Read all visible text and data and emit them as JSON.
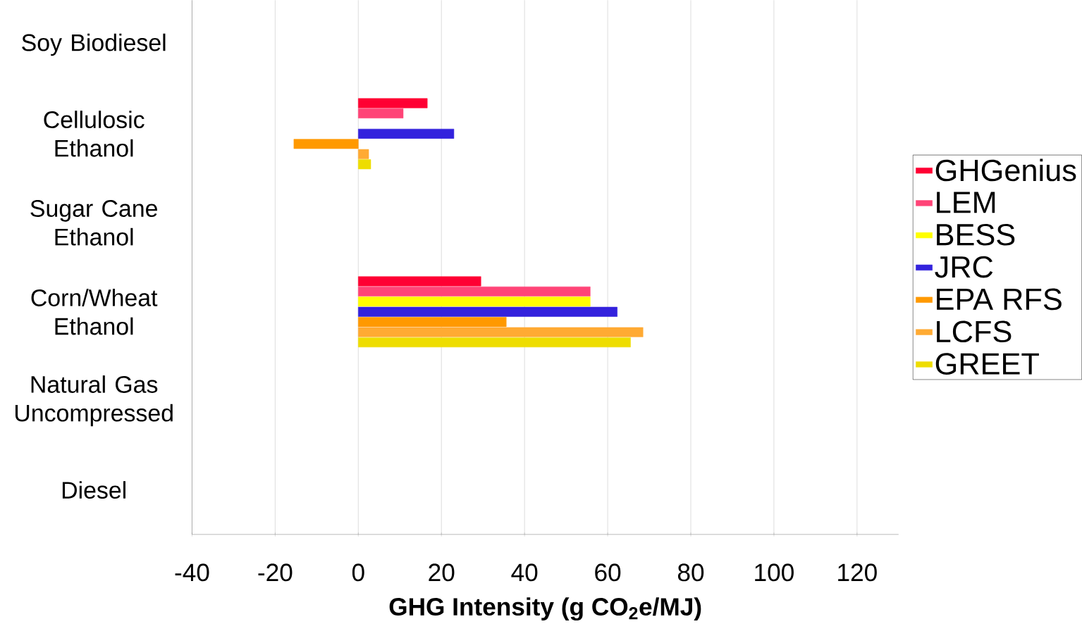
{
  "chart_data": {
    "type": "bar",
    "orientation": "horizontal",
    "xlabel": "**GHG Intensity (g CO$_{2}$e/MJ)**",
    "categories": [
      "Soy Biodiesel",
      "Cellulosic Ethanol",
      "Sugar Cane Ethanol",
      "Corn/Wheat Ethanol",
      "Natural Gas Uncompressed",
      "Diesel"
    ],
    "series": [
      {
        "name": "GHGenius",
        "color": "#ff0033",
        "values": [
          null,
          16.6,
          null,
          29.5,
          null,
          null
        ]
      },
      {
        "name": "LEM",
        "color": "#ff4477",
        "values": [
          null,
          10.8,
          null,
          55.8,
          null,
          null
        ]
      },
      {
        "name": "BESS",
        "color": "#ffff00",
        "values": [
          null,
          null,
          null,
          55.8,
          null,
          null
        ]
      },
      {
        "name": "JRC",
        "color": "#3322dd",
        "values": [
          null,
          23,
          null,
          62.3,
          null,
          null
        ]
      },
      {
        "name": "EPA RFS",
        "color": "#ff9900",
        "values": [
          null,
          -15.5,
          null,
          35.6,
          null,
          null
        ]
      },
      {
        "name": "LCFS",
        "color": "#ffaa33",
        "values": [
          null,
          2.5,
          null,
          68.5,
          null,
          null
        ]
      },
      {
        "name": "GREET",
        "color": "#eedd00",
        "values": [
          null,
          3,
          null,
          65.5,
          null,
          null
        ]
      }
    ],
    "xlim": [
      -40,
      130
    ],
    "xticks": [
      -40,
      -20,
      0,
      20,
      40,
      60,
      80,
      100,
      120
    ],
    "grid": "x",
    "legend": "right"
  }
}
